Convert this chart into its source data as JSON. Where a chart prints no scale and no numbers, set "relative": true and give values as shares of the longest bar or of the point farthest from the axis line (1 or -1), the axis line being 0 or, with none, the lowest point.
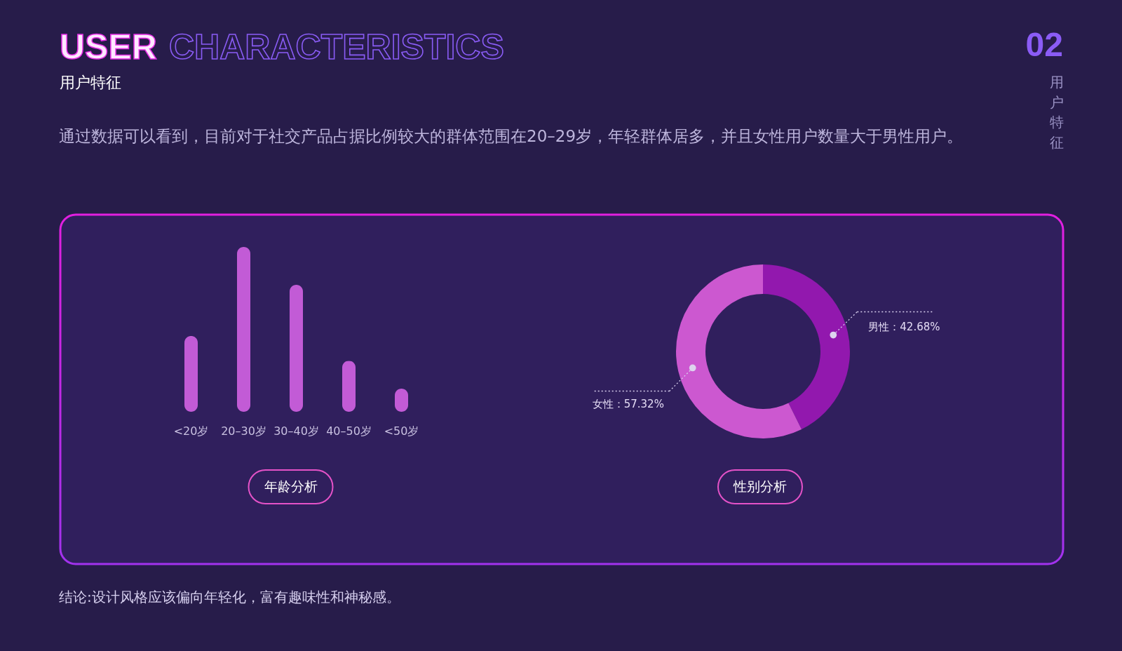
{
  "chart_data": [
    {
      "type": "other",
      "title": "USER CHARACTERISTICS",
      "subtitle": "用户特征",
      "annotations": [
        "通过数据可以看到，目前对于社交产品占据比例较大的群体范围在20–29岁，年轻群体居多，并且女性用户数量大于男性用户。",
        "02",
        "用户特征",
        "结论:设计风格应该偏向年轻化，富有趣味性和神秘感。"
      ]
    },
    {
      "type": "bar",
      "title": "年龄分析",
      "categories": [
        "<20岁",
        "20–30岁",
        "30–40岁",
        "40–50岁",
        "<50岁"
      ],
      "values": [
        0.46,
        1,
        0.77,
        0.31,
        0.14
      ],
      "relative": true,
      "color": "#c25bd6"
    },
    {
      "type": "donut",
      "title": "性别分析",
      "categories": [
        "男性",
        "女性"
      ],
      "values": [
        42.68,
        57.32
      ],
      "colors": [
        "#9218ae",
        "#cc58d0"
      ],
      "value_labels": [
        "：42.68%",
        "：57.32%"
      ]
    }
  ]
}
